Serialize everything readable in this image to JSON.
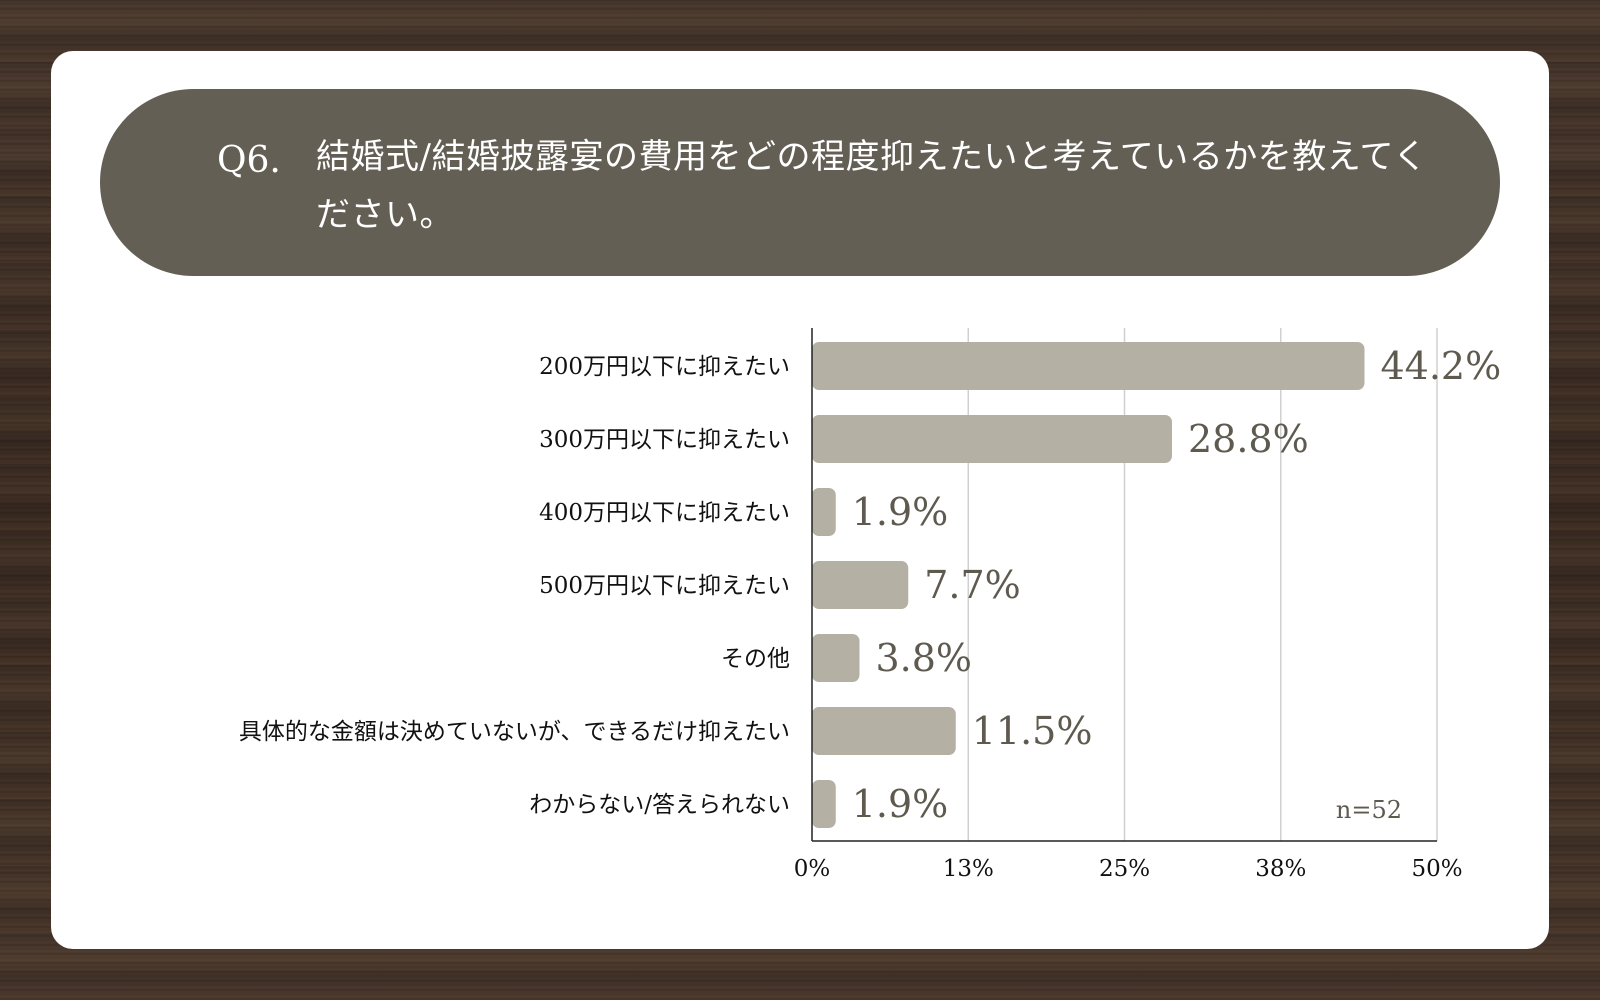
{
  "question": {
    "number": "Q6.",
    "text": "結婚式/結婚披露宴の費用をどの程度抑えたいと考えているかを教えてください。"
  },
  "colors": {
    "banner": "#645f54",
    "bar": "#b4b0a4",
    "value_text": "#5f5a4f",
    "grid": "#d0d0d0"
  },
  "chart_data": {
    "type": "bar",
    "orientation": "horizontal",
    "categories": [
      "200万円以下に抑えたい",
      "300万円以下に抑えたい",
      "400万円以下に抑えたい",
      "500万円以下に抑えたい",
      "その他",
      "具体的な金額は決めていないが、できるだけ抑えたい",
      "わからない/答えられない"
    ],
    "values": [
      44.2,
      28.8,
      1.9,
      7.7,
      3.8,
      11.5,
      1.9
    ],
    "value_labels": [
      "44.2%",
      "28.8%",
      "1.9%",
      "7.7%",
      "3.8%",
      "11.5%",
      "1.9%"
    ],
    "xlim": [
      0,
      50
    ],
    "ticks": [
      0,
      12.5,
      25,
      37.5,
      50
    ],
    "tick_labels": [
      "0%",
      "13%",
      "25%",
      "38%",
      "50%"
    ],
    "grid": true,
    "annotation": "n=52"
  }
}
